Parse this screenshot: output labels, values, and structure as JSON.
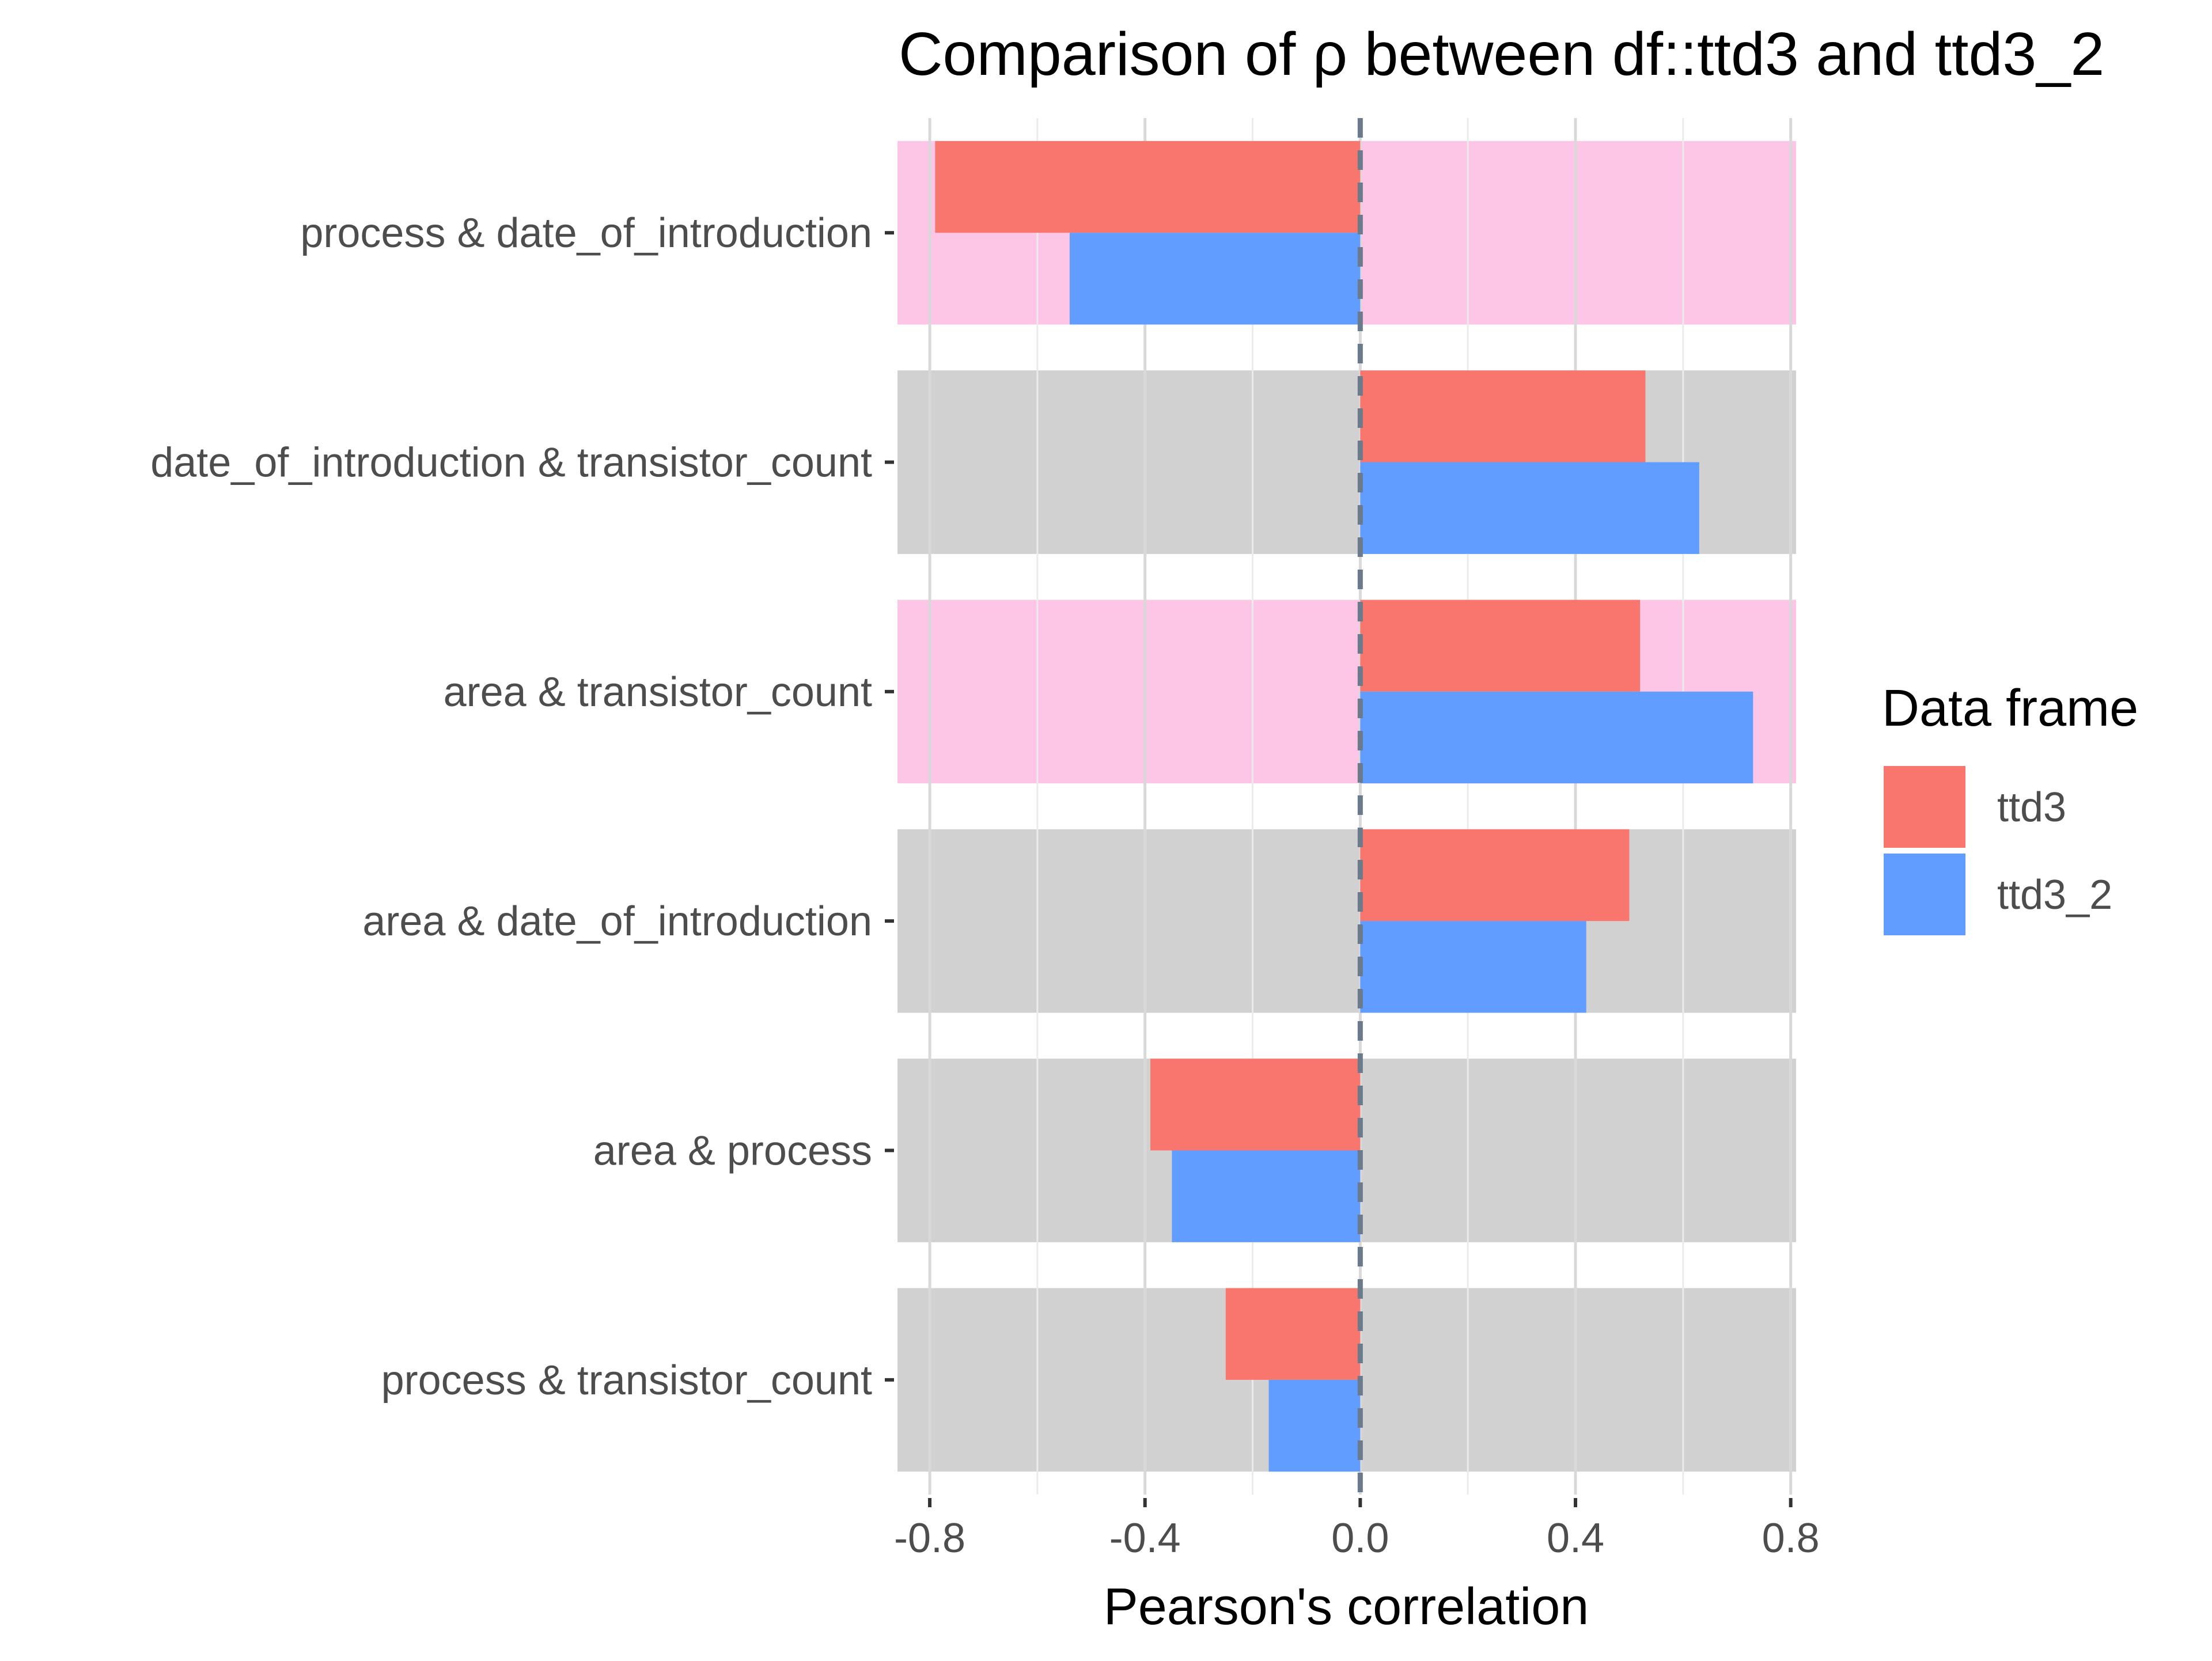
{
  "chart_data": {
    "type": "bar",
    "orientation": "horizontal",
    "title": "Comparison of ρ between df::ttd3 and ttd3_2",
    "xlabel": "Pearson's correlation",
    "ylabel": "",
    "xlim": [
      -0.86,
      0.81
    ],
    "xticks": [
      -0.8,
      -0.4,
      0.0,
      0.4,
      0.8
    ],
    "xtick_labels": [
      "-0.8",
      "-0.4",
      "0.0",
      "0.4",
      "0.8"
    ],
    "grid": true,
    "reference_line": {
      "x": 0,
      "style": "dashed",
      "color": "#6b7b8c"
    },
    "categories": [
      "process & date_of_introduction",
      "date_of_introduction & transistor_count",
      "area & transistor_count",
      "area & date_of_introduction",
      "area & process",
      "process & transistor_count"
    ],
    "band_colors": [
      "#fdc5e6",
      "#d1d1d1",
      "#fdc5e6",
      "#d1d1d1",
      "#d1d1d1",
      "#d1d1d1"
    ],
    "series": [
      {
        "name": "ttd3",
        "color": "#f8766d",
        "values": [
          -0.79,
          0.53,
          0.52,
          0.5,
          -0.39,
          -0.25
        ]
      },
      {
        "name": "ttd3_2",
        "color": "#619cff",
        "values": [
          -0.54,
          0.63,
          0.73,
          0.42,
          -0.35,
          -0.17
        ]
      }
    ],
    "legend": {
      "title": "Data frame",
      "position": "right",
      "items": [
        "ttd3",
        "ttd3_2"
      ]
    }
  }
}
